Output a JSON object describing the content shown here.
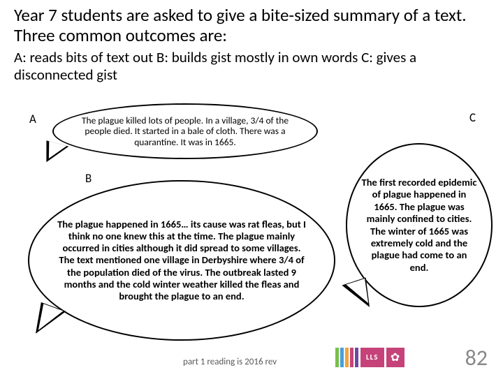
{
  "title": "Year 7 students are asked to give a bite-sized summary of a text. Three common outcomes are:",
  "subtitle": "A: reads bits of text out   B: builds gist mostly in own words C: gives a disconnected gist",
  "labels": {
    "a": "A",
    "b": "B",
    "c": "C"
  },
  "bubbles": {
    "a": "The plague killed lots of people. In a village, 3/4 of the people died. It started in a bale of cloth. There was a quarantine. It was in 1665.",
    "b": "The plague happened in 1665… its cause was rat fleas, but I think no one knew this at the time. The plague mainly occurred in cities although it did spread to some villages. The text mentioned one village in Derbyshire where 3/4 of the population died of the virus. The outbreak lasted 9 months and the cold winter weather killed the fleas and brought the plague to an end.",
    "c": "The first recorded epidemic of plague happened in 1665. The plague was mainly confined to cities. The winter of 1665 was extremely cold and the plague had come to an end."
  },
  "footer": "part 1 reading is 2016 rev",
  "page_number": "82",
  "logo": {
    "text": "LLS",
    "stripe_colors": [
      "#7abf4a",
      "#4a9fd8",
      "#f2a43c",
      "#c6437a",
      "#6a4a9f"
    ],
    "bg_color": "#c6437a"
  },
  "styling": {
    "title_fontsize": 25,
    "subtitle_fontsize": 21,
    "bubble_border_color": "#000000",
    "bubble_bg": "#ffffff",
    "page_bg": "#ffffff",
    "footer_color": "#595959",
    "pagenum_color": "#898989",
    "pagenum_fontsize": 32
  }
}
